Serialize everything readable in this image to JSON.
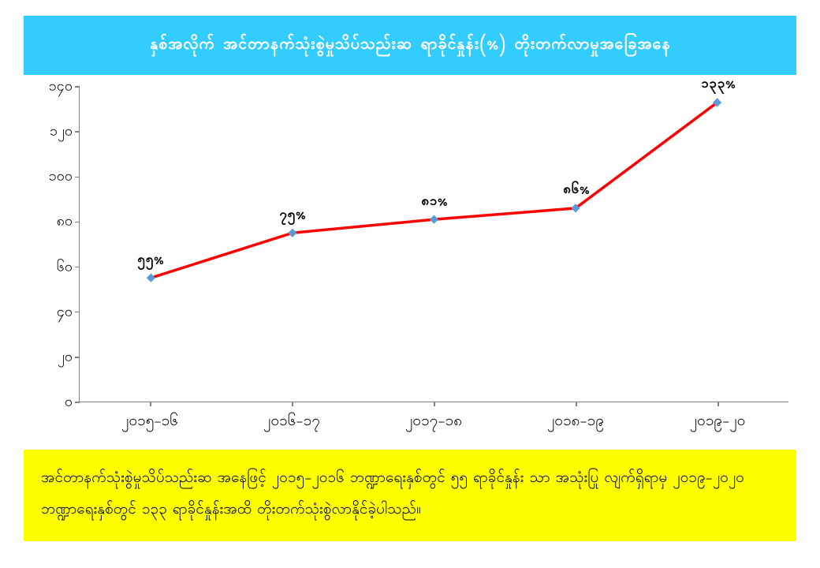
{
  "title": "နှစ်အလိုက် အင်တာနက်သုံးစွဲမှုသိပ်သည်းဆ ရာခိုင်နှုန်း(%) တိုးတက်လာမှုအခြေအနေ",
  "title_bg": "#33ccff",
  "title_color": "#ffffff",
  "footer": "အင်တာနက်သုံးစွဲမှုသိပ်သည်းဆ အနေဖြင့် ၂၀၁၅-၂၀၁၆ ဘဏ္ဍာရေးနှစ်တွင် ၅၅ ရာခိုင်နှုန်း သာ အသုံးပြု လျက်ရှိရာမှ ၂၀၁၉-၂၀၂၀ ဘဏ္ဍာရေးနှစ်တွင် ၁၃၃ ရာခိုင်နှုန်းအထိ တိုးတက်သုံးစွဲလာနိုင်ခဲ့ပါသည်။",
  "footer_bg": "#ffff00",
  "chart": {
    "type": "line",
    "background_color": "#ffffff",
    "axis_color": "#808080",
    "line_color": "#ff0000",
    "line_width": 3.5,
    "marker_color": "#5b9bd5",
    "marker_size": 8,
    "label_color": "#000000",
    "label_fontsize": 18,
    "ylim": [
      0,
      140
    ],
    "ytick_step": 20,
    "yticks": [
      {
        "v": 0,
        "label": "၀"
      },
      {
        "v": 20,
        "label": "၂၀"
      },
      {
        "v": 40,
        "label": "၄၀"
      },
      {
        "v": 60,
        "label": "၆၀"
      },
      {
        "v": 80,
        "label": "၈၀"
      },
      {
        "v": 100,
        "label": "၁၀၀"
      },
      {
        "v": 120,
        "label": "၁၂၀"
      },
      {
        "v": 140,
        "label": "၁၄၀"
      }
    ],
    "categories": [
      "၂၀၁၅-၁၆",
      "၂၀၁၆-၁၇",
      "၂၀၁၇-၁၈",
      "၂၀၁၈-၁၉",
      "၂၀၁၉-၂၀"
    ],
    "values": [
      55,
      75,
      81,
      86,
      133
    ],
    "value_labels": [
      "၅၅%",
      "၇၅%",
      "၈၁%",
      "၈၆%",
      "၁၃၃%"
    ]
  }
}
